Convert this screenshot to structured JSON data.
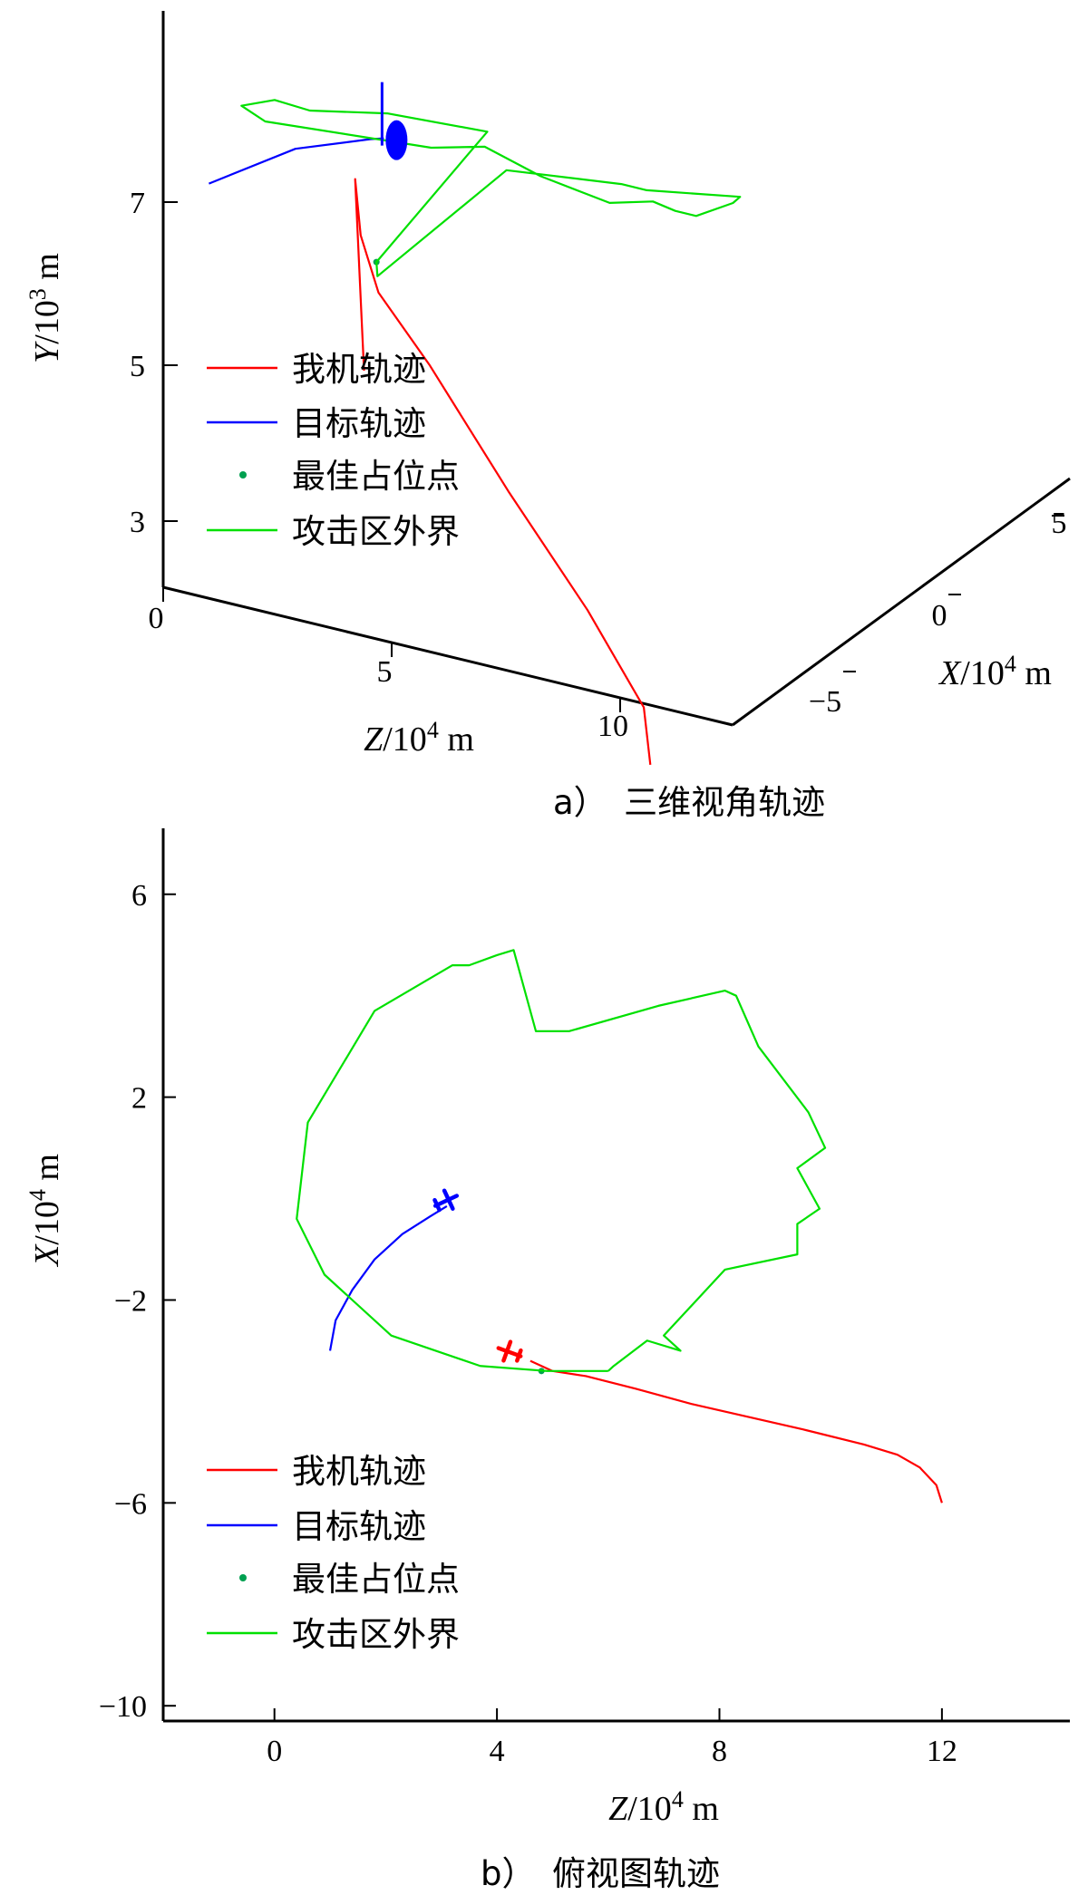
{
  "colors": {
    "own": "#ff0000",
    "target": "#0000ff",
    "best": "#00a050",
    "boundary": "#00e000",
    "axis": "#000000"
  },
  "legend_labels": [
    "我机轨迹",
    "目标轨迹",
    "最佳占位点",
    "攻击区外界"
  ],
  "chart_data": [
    {
      "type": "line",
      "caption": "a）　三维视角轨迹",
      "projection": "3d",
      "zlabel_parts": {
        "var": "Z",
        "base": "/10",
        "exp": "4",
        "unit": " m"
      },
      "xlabel_parts": {
        "var": "X",
        "base": "/10",
        "exp": "4",
        "unit": " m"
      },
      "ylabel_parts": {
        "var": "Y",
        "base": "/10",
        "exp": "3",
        "unit": " m"
      },
      "z_ticks": [
        "0",
        "5",
        "10"
      ],
      "x_ticks": [
        "5",
        "0",
        "−5"
      ],
      "y_ticks": [
        "7",
        "5",
        "3"
      ],
      "series": [
        {
          "name": "我机轨迹",
          "z": [
            12.0,
            11.5,
            10.0,
            8.0,
            6.0,
            4.8,
            4.3,
            4.2,
            4.35
          ],
          "x": [
            -6.0,
            -5.2,
            -4.6,
            -4.0,
            -3.4,
            -3.2,
            -2.95,
            -3.0,
            -2.9
          ],
          "y": [
            2.5,
            3.0,
            3.9,
            5.0,
            6.2,
            6.9,
            7.5,
            8.2,
            5.8
          ]
        },
        {
          "name": "目标轨迹",
          "z": [
            1.0,
            2.0,
            3.2,
            3.4
          ],
          "x": [
            -3.0,
            -1.0,
            0.0,
            0.2
          ],
          "y": [
            7.7,
            7.9,
            8.0,
            8.0
          ]
        },
        {
          "name": "最佳占位点",
          "z": [
            4.8
          ],
          "x": [
            -3.3
          ],
          "y": [
            7.3
          ]
        },
        {
          "name": "攻击区外界",
          "closed": true,
          "z": [
            4.8,
            4.6,
            4.7,
            6.9,
            7.1,
            9.5,
            9.7,
            10.1,
            10.0,
            9.6,
            9.1,
            7.9,
            6.5,
            6.0,
            2.5,
            1.4,
            1.1,
            1.2,
            2.0,
            3.7
          ],
          "x": [
            -3.3,
            -2.8,
            3.3,
            4.0,
            4.8,
            4.0,
            3.2,
            0.5,
            -0.3,
            -0.5,
            -1.5,
            -2.2,
            -1.8,
            -3.3,
            -3.6,
            -2.3,
            0.0,
            1.5,
            3.5,
            4.6
          ],
          "y": [
            7.3,
            7.0,
            7.2,
            7.2,
            7.0,
            7.4,
            7.5,
            7.9,
            8.1,
            8.2,
            8.3,
            8.6,
            8.7,
            8.9,
            8.8,
            8.6,
            8.2,
            7.8,
            7.5,
            7.3
          ]
        }
      ]
    },
    {
      "type": "line",
      "caption": "b）　俯视图轨迹",
      "xlabel_parts": {
        "var": "Z",
        "base": "/10",
        "exp": "4",
        "unit": " m"
      },
      "ylabel_parts": {
        "var": "X",
        "base": "/10",
        "exp": "4",
        "unit": " m"
      },
      "xlim": [
        -2,
        14.3
      ],
      "ylim": [
        -10.3,
        7.3
      ],
      "x_ticks": [
        0,
        4,
        8,
        12
      ],
      "y_ticks": [
        6,
        2,
        -2,
        -6,
        -10
      ],
      "series": [
        {
          "name": "我机轨迹",
          "x": [
            12.0,
            11.9,
            11.6,
            11.2,
            10.6,
            9.5,
            8.5,
            7.5,
            6.5,
            5.6,
            5.0,
            4.6
          ],
          "y": [
            -6.0,
            -5.65,
            -5.3,
            -5.05,
            -4.85,
            -4.55,
            -4.3,
            -4.05,
            -3.75,
            -3.5,
            -3.4,
            -3.2
          ]
        },
        {
          "name": "目标轨迹",
          "x": [
            1.0,
            1.1,
            1.4,
            1.8,
            2.3,
            2.8,
            3.1
          ],
          "y": [
            -3.0,
            -2.4,
            -1.8,
            -1.2,
            -0.7,
            -0.35,
            -0.15
          ]
        },
        {
          "name": "最佳占位点",
          "x": [
            4.8
          ],
          "y": [
            -3.4
          ]
        },
        {
          "name": "攻击区外界",
          "x": [
            6.0,
            6.1,
            6.7,
            7.3,
            7.0,
            8.1,
            9.4,
            9.4,
            9.8,
            9.4,
            9.9,
            9.6,
            8.7,
            8.3,
            8.1,
            6.9,
            5.3,
            4.8,
            4.7,
            4.3,
            4.0,
            3.5,
            3.2,
            1.8,
            0.6,
            0.4,
            0.9,
            2.1,
            3.7,
            4.9,
            6.0
          ],
          "y": [
            -3.4,
            -3.3,
            -2.8,
            -3.0,
            -2.7,
            -1.4,
            -1.1,
            -0.5,
            -0.2,
            0.6,
            1.0,
            1.7,
            3.0,
            4.0,
            4.1,
            3.8,
            3.3,
            3.3,
            3.3,
            4.9,
            4.8,
            4.6,
            4.6,
            3.7,
            1.5,
            -0.4,
            -1.5,
            -2.7,
            -3.3,
            -3.4,
            -3.4
          ]
        }
      ]
    }
  ]
}
